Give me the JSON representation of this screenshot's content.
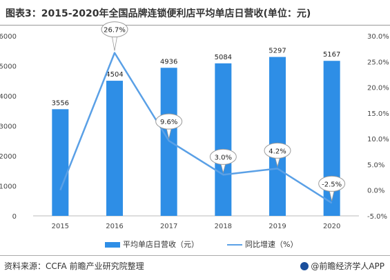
{
  "title": "图表3：2015-2020年全国品牌连锁便利店平均单店日营收(单位：元)",
  "source": "资料来源：CCFA 前瞻产业研究院整理",
  "brand": "@前瞻经济学人APP",
  "colors": {
    "bar": "#2e8ee6",
    "line": "#5aa0e6",
    "text": "#333333"
  },
  "chart_data": {
    "type": "bar",
    "categories": [
      "2015",
      "2016",
      "2017",
      "2018",
      "2019",
      "2020"
    ],
    "series": [
      {
        "name": "平均单店日营收（元）",
        "type": "bar",
        "axis": "left",
        "values": [
          3556,
          4504,
          4936,
          5084,
          5297,
          5167
        ],
        "labels": [
          "3556",
          "4504",
          "4936",
          "5084",
          "5297",
          "5167"
        ]
      },
      {
        "name": "同比增速（%）",
        "type": "line",
        "axis": "right",
        "values": [
          null,
          26.7,
          9.6,
          3.0,
          4.2,
          -2.5
        ],
        "labels": [
          "",
          "26.7%",
          "9.6%",
          "3.0%",
          "4.2%",
          "-2.5%"
        ]
      }
    ],
    "ylim": [
      0,
      6000
    ],
    "yticks": [
      "0",
      "1000",
      "2000",
      "3000",
      "4000",
      "5000",
      "6000"
    ],
    "y2lim": [
      -5,
      30
    ],
    "y2ticks": [
      "-5.0%",
      "0.0%",
      "5.0%",
      "10.0%",
      "15.0%",
      "20.0%",
      "25.0%",
      "30.0%"
    ],
    "legend_position": "bottom",
    "grid": false
  }
}
